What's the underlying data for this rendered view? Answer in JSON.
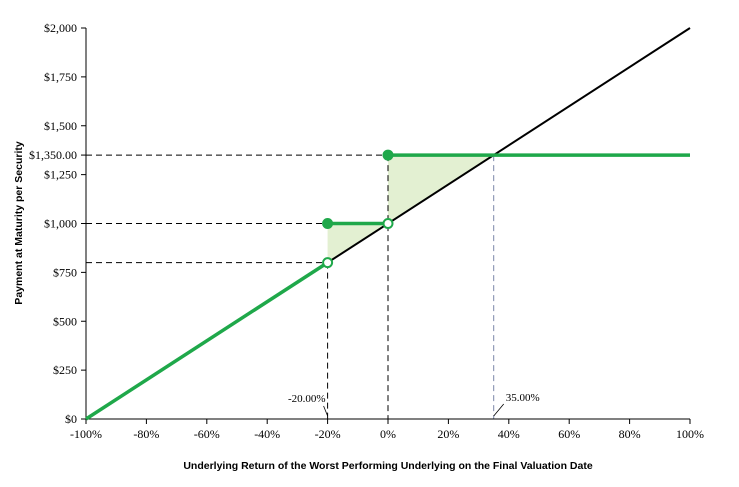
{
  "chart_data": {
    "type": "line",
    "title": "",
    "xlabel": "Underlying Return of the Worst Performing Underlying on the Final Valuation Date",
    "ylabel": "Payment at Maturity per Security",
    "xlim": [
      -100,
      100
    ],
    "ylim": [
      0,
      2000
    ],
    "grid": false,
    "x_ticks": [
      -100,
      -80,
      -60,
      -40,
      -20,
      0,
      20,
      40,
      60,
      80,
      100
    ],
    "x_tick_labels": [
      "-100%",
      "-80%",
      "-60%",
      "-40%",
      "-20%",
      "0%",
      "20%",
      "40%",
      "60%",
      "80%",
      "100%"
    ],
    "y_ticks": [
      0,
      250,
      500,
      750,
      1000,
      1250,
      1500,
      1750,
      2000
    ],
    "y_tick_labels": [
      "$0",
      "$250",
      "$500",
      "$750",
      "$1,000",
      "$1,250",
      "$1,500",
      "$1,750",
      "$2,000"
    ],
    "extra_y_label": {
      "value": 1350,
      "label": "$1,350.00"
    },
    "series": [
      {
        "role": "underlying",
        "color": "#000000",
        "points": [
          [
            -100,
            0
          ],
          [
            100,
            2000
          ]
        ]
      },
      {
        "role": "security",
        "color": "#1fa84a",
        "segments": [
          [
            [
              -100,
              0
            ],
            [
              -20,
              800
            ]
          ],
          [
            [
              -20,
              1000
            ],
            [
              0,
              1000
            ]
          ],
          [
            [
              0,
              1350
            ],
            [
              100,
              1350
            ]
          ]
        ]
      }
    ],
    "markers": [
      {
        "x": -20,
        "y": 800,
        "filled": false
      },
      {
        "x": -20,
        "y": 1000,
        "filled": true
      },
      {
        "x": 0,
        "y": 1000,
        "filled": false
      },
      {
        "x": 0,
        "y": 1350,
        "filled": true
      }
    ],
    "shaded_regions": [
      {
        "color": "#e3f0d2",
        "points": [
          [
            -20,
            800
          ],
          [
            -20,
            1000
          ],
          [
            0,
            1000
          ]
        ]
      },
      {
        "color": "#e3f0d2",
        "points": [
          [
            0,
            1000
          ],
          [
            0,
            1350
          ],
          [
            35,
            1350
          ]
        ]
      }
    ],
    "reference_lines": [
      {
        "kind": "horizontal",
        "y": 1350,
        "to_x": 35,
        "style": "dashed"
      },
      {
        "kind": "horizontal",
        "y": 1000,
        "to_x": -20,
        "style": "dashed"
      },
      {
        "kind": "horizontal",
        "y": 800,
        "to_x": -20,
        "style": "dashed"
      },
      {
        "kind": "vertical",
        "x": -20,
        "from_y": 800,
        "style": "dashed"
      },
      {
        "kind": "vertical",
        "x": 0,
        "from_y": 1350,
        "style": "dashed"
      },
      {
        "kind": "vertical",
        "x": 35,
        "from_y": 1350,
        "style": "dashed",
        "color": "#7b86a8"
      }
    ],
    "annotations": [
      {
        "text": "-20.00%",
        "x": -20,
        "pointer": "left"
      },
      {
        "text": "35.00%",
        "x": 35,
        "pointer": "right"
      }
    ]
  }
}
